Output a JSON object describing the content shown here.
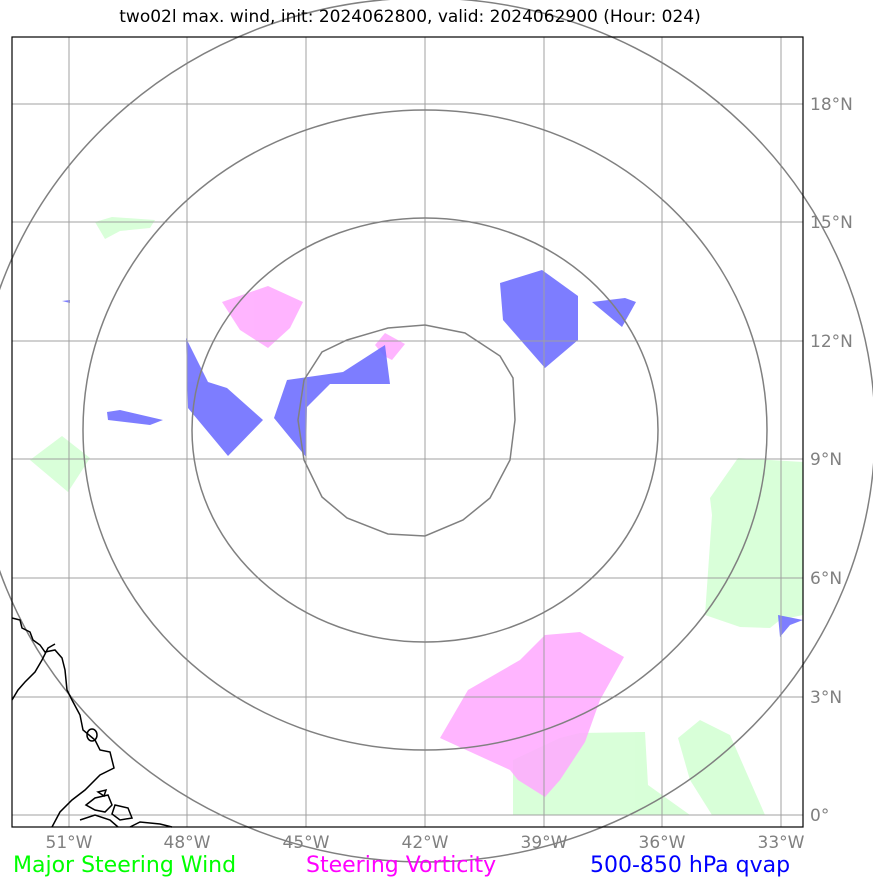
{
  "title": "two02l max. wind, init: 2024062800, valid: 2024062900 (Hour: 024)",
  "lon_labels": [
    "51°W",
    "48°W",
    "45°W",
    "42°W",
    "39°W",
    "36°W",
    "33°W"
  ],
  "lat_labels": [
    "18°N",
    "15°N",
    "12°N",
    "9°N",
    "6°N",
    "3°N",
    "0°"
  ],
  "legend": [
    {
      "label": "Major Steering Wind",
      "color": "#00ff00"
    },
    {
      "label": "Steering Vorticity",
      "color": "#ff00ff"
    },
    {
      "label": "500-850 hPa qvap",
      "color": "#0000ff"
    }
  ],
  "colors": {
    "grid": "#a0a0a0",
    "range_rings": "#808080",
    "coastline": "#000000",
    "steering_wind_fill": "#ccffcc",
    "vorticity_fill": "#ffa8ff",
    "qvap_fill": "#7070ff"
  },
  "projection": {
    "lon_min": -52.4,
    "lon_max": -32.3,
    "lat_min": -0.35,
    "lat_max": 19.7,
    "storm_center": {
      "lon": -42.0,
      "lat": 10.0
    },
    "range_rings_deg": [
      3.2,
      6.0,
      8.75,
      11.5
    ]
  }
}
